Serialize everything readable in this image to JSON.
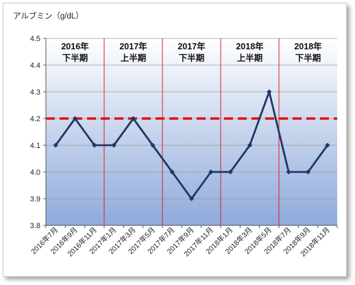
{
  "chart_data": {
    "type": "line",
    "ylabel": "アルブミン（g/dL）",
    "ylim": [
      3.8,
      4.5
    ],
    "yticks": [
      "3.8",
      "3.9",
      "4.0",
      "4.1",
      "4.2",
      "4.3",
      "4.4",
      "4.5"
    ],
    "categories": [
      "2016年7月",
      "2016年9月",
      "2016年11月",
      "2017年1月",
      "2017年3月",
      "2017年5月",
      "2017年7月",
      "2017年9月",
      "2017年11月",
      "2018年1月",
      "2018年3月",
      "2018年5月",
      "2018年7月",
      "2018年9月",
      "2018年11月"
    ],
    "series": [
      {
        "values": [
          4.1,
          4.2,
          4.1,
          4.1,
          4.2,
          4.1,
          4.0,
          3.9,
          4.0,
          4.0,
          4.1,
          4.3,
          4.0,
          4.0,
          4.1
        ]
      }
    ],
    "reference_line": {
      "value": 4.2,
      "style": "dashed"
    },
    "periods": [
      {
        "year": "2016年",
        "half": "下半期"
      },
      {
        "year": "2017年",
        "half": "上半期"
      },
      {
        "year": "2017年",
        "half": "下半期"
      },
      {
        "year": "2018年",
        "half": "上半期"
      },
      {
        "year": "2018年",
        "half": "下半期"
      }
    ],
    "period_dividers_after": [
      2.5,
      5.5,
      8.5,
      11.5
    ],
    "grid": true,
    "colors": {
      "line": "#1f3864",
      "reference": "#e01010",
      "divider": "#d92020",
      "bg_top": "#ffffff",
      "bg_bottom": "#8eaadb"
    }
  }
}
